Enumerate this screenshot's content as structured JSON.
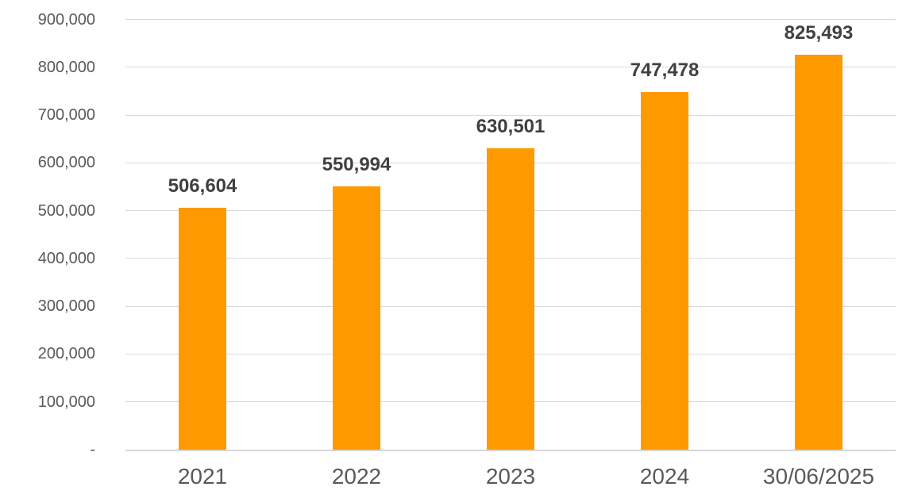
{
  "chart_data": {
    "type": "bar",
    "title": "",
    "xlabel": "",
    "ylabel": "",
    "categories": [
      "2021",
      "2022",
      "2023",
      "2024",
      "30/06/2025"
    ],
    "values": [
      506604,
      550994,
      630501,
      747478,
      825493
    ],
    "value_labels": [
      "506,604",
      "550,994",
      "630,501",
      "747,478",
      "825,493"
    ],
    "ylim": [
      0,
      900000
    ],
    "ytick_step": 100000,
    "ytick_labels": [
      "-",
      "100,000",
      "200,000",
      "300,000",
      "400,000",
      "500,000",
      "600,000",
      "700,000",
      "800,000",
      "900,000"
    ],
    "grid": true,
    "legend": false,
    "colors": {
      "bar": "#FF9900",
      "value_label_text": "#404040",
      "axis_tick_text": "#595959",
      "gridline": "#D9D9D9",
      "axis_line": "#D6D6D6",
      "background": "#FFFFFF"
    }
  }
}
